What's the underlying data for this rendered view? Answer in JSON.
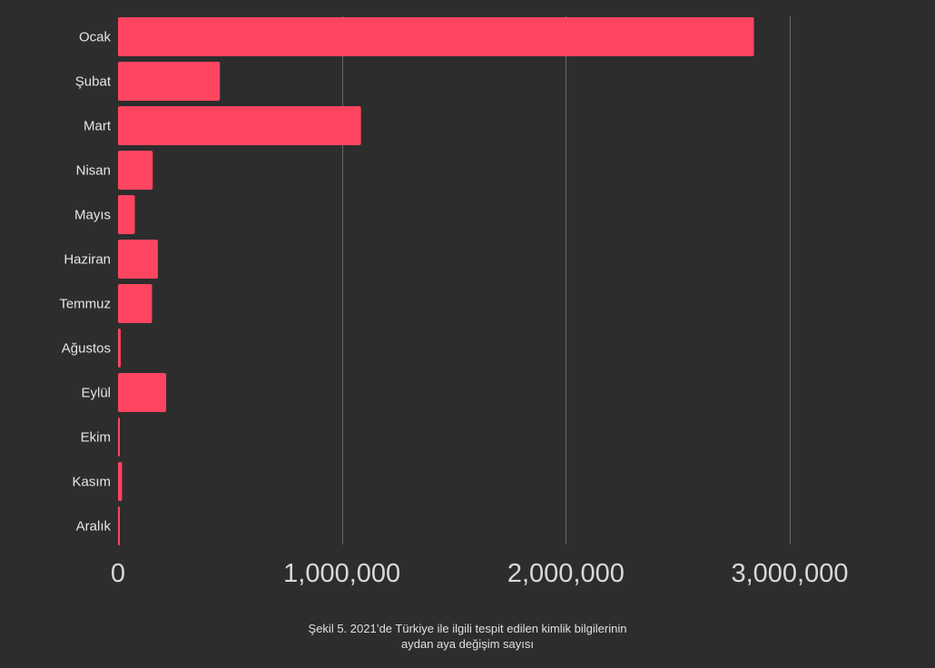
{
  "chart_data": {
    "type": "bar",
    "orientation": "horizontal",
    "categories": [
      "Ocak",
      "Şubat",
      "Mart",
      "Nisan",
      "Mayıs",
      "Haziran",
      "Temmuz",
      "Ağustos",
      "Eylül",
      "Ekim",
      "Kasım",
      "Aralık"
    ],
    "values": [
      2840000,
      455000,
      1085000,
      155000,
      75000,
      178000,
      152000,
      12000,
      215000,
      4000,
      18000,
      7000
    ],
    "xlim": [
      0,
      3000000
    ],
    "xticks": [
      0,
      1000000,
      2000000,
      3000000
    ],
    "xtick_labels": [
      "0",
      "1,000,000",
      "2,000,000",
      "3,000,000"
    ],
    "title": "",
    "xlabel": "",
    "ylabel": "",
    "grid": "vertical",
    "bar_color": "#ff4560",
    "background": "#2d2d2d"
  },
  "caption": {
    "line1": "Şekil 5. 2021’de Türkiye ile ilgili tespit edilen kimlik bilgilerinin",
    "line2": "aydan aya değişim sayısı"
  }
}
